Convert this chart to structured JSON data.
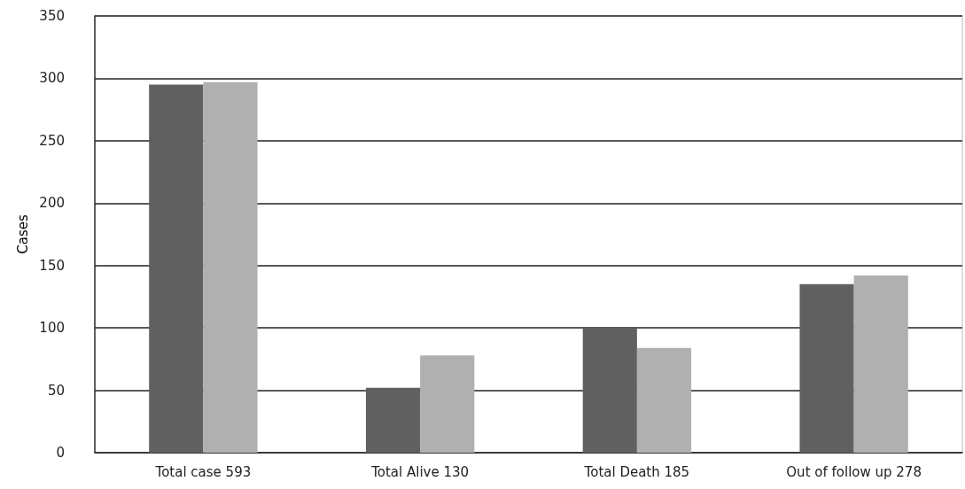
{
  "chart_data": {
    "type": "bar",
    "ylabel": "Cases",
    "categories": [
      "Total case 593",
      "Total Alive 130",
      "Total Death 185",
      "Out of follow up 278"
    ],
    "series": [
      {
        "color": "#606060",
        "values": [
          295,
          52,
          100,
          135
        ]
      },
      {
        "color": "#b0b0b0",
        "values": [
          297,
          78,
          84,
          142
        ]
      }
    ],
    "ylim": [
      0,
      350
    ],
    "yticks": [
      0,
      50,
      100,
      150,
      200,
      250,
      300,
      350
    ],
    "grid": "y"
  }
}
